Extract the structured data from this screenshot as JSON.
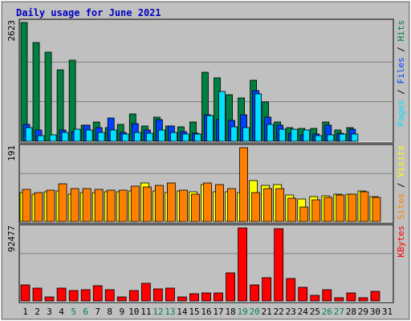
{
  "title": "Daily usage for June 2021",
  "colors": {
    "background": "#c0c0c0",
    "title": "#0000c0",
    "hits": "#008040",
    "files": "#0040ff",
    "pages": "#00e0ff",
    "visits": "#ffff00",
    "sites": "#ff8000",
    "kbytes": "#ff0000",
    "day_default": "#000000",
    "day_weekend": "#00805c"
  },
  "chart_data": [
    {
      "type": "bar",
      "name": "hits-files-pages",
      "ymax_label": "2623",
      "ymax": 2623,
      "right_label": [
        {
          "text": "Pages",
          "color": "#00e0ff"
        },
        {
          "text": " / ",
          "color": "#000000"
        },
        {
          "text": "Files",
          "color": "#0040ff"
        },
        {
          "text": " / ",
          "color": "#000000"
        },
        {
          "text": "Hits",
          "color": "#008040"
        }
      ],
      "categories": [
        1,
        2,
        3,
        4,
        5,
        6,
        7,
        8,
        9,
        10,
        11,
        12,
        13,
        14,
        15,
        16,
        17,
        18,
        19,
        20,
        21,
        22,
        23,
        24,
        25,
        26,
        27,
        28,
        29,
        30
      ],
      "series": [
        {
          "name": "Hits",
          "values": [
            2623,
            2180,
            1970,
            1570,
            1790,
            360,
            420,
            300,
            380,
            610,
            340,
            530,
            340,
            320,
            430,
            1520,
            1400,
            1030,
            950,
            1350,
            860,
            420,
            300,
            290,
            290,
            430,
            250,
            310,
            0,
            0
          ]
        },
        {
          "name": "Files",
          "values": [
            370,
            250,
            0,
            240,
            220,
            360,
            300,
            510,
            200,
            390,
            250,
            480,
            340,
            210,
            180,
            580,
            470,
            460,
            590,
            1110,
            540,
            360,
            180,
            150,
            160,
            350,
            180,
            260,
            0,
            0
          ]
        },
        {
          "name": "Pages",
          "values": [
            310,
            120,
            150,
            190,
            270,
            240,
            200,
            250,
            160,
            200,
            180,
            250,
            200,
            160,
            160,
            560,
            1100,
            320,
            300,
            1040,
            380,
            270,
            270,
            240,
            130,
            150,
            160,
            160,
            0,
            0
          ]
        }
      ]
    },
    {
      "type": "bar",
      "name": "visits-sites",
      "ymax_label": "191",
      "ymax": 191,
      "right_label": [
        {
          "text": "Sites",
          "color": "#ff8000"
        },
        {
          "text": " / ",
          "color": "#000000"
        },
        {
          "text": "Visits",
          "color": "#ffff00"
        }
      ],
      "categories": [
        1,
        2,
        3,
        4,
        5,
        6,
        7,
        8,
        9,
        10,
        11,
        12,
        13,
        14,
        15,
        16,
        17,
        18,
        19,
        20,
        21,
        22,
        23,
        24,
        25,
        26,
        27,
        28,
        29,
        30
      ],
      "series": [
        {
          "name": "Visits",
          "values": [
            74,
            70,
            76,
            79,
            70,
            74,
            74,
            77,
            76,
            79,
            100,
            79,
            74,
            79,
            76,
            96,
            76,
            76,
            75,
            105,
            94,
            95,
            68,
            58,
            64,
            66,
            70,
            70,
            79,
            65
          ]
        },
        {
          "name": "Sites",
          "values": [
            84,
            75,
            80,
            98,
            85,
            85,
            84,
            81,
            81,
            91,
            89,
            93,
            100,
            82,
            70,
            100,
            96,
            85,
            191,
            74,
            86,
            86,
            60,
            38,
            57,
            62,
            68,
            70,
            77,
            63
          ]
        }
      ]
    },
    {
      "type": "bar",
      "name": "kbytes",
      "ymax_label": "92477",
      "ymax": 92477,
      "right_label": [
        {
          "text": "KBytes",
          "color": "#ff0000"
        }
      ],
      "categories": [
        1,
        2,
        3,
        4,
        5,
        6,
        7,
        8,
        9,
        10,
        11,
        12,
        13,
        14,
        15,
        16,
        17,
        18,
        19,
        20,
        21,
        22,
        23,
        24,
        25,
        26,
        27,
        28,
        29,
        30
      ],
      "series": [
        {
          "name": "KBytes",
          "values": [
            20000,
            16000,
            5000,
            16000,
            13000,
            14000,
            19000,
            14000,
            5000,
            13000,
            22000,
            15000,
            16000,
            5000,
            9000,
            10000,
            10000,
            36000,
            92477,
            20000,
            29000,
            91000,
            28000,
            17000,
            7000,
            14000,
            4000,
            10000,
            4000,
            12000
          ]
        }
      ]
    }
  ],
  "x_axis": {
    "day_labels": [
      "1",
      "2",
      "3",
      "4",
      "5",
      "6",
      "7",
      "8",
      "9",
      "10",
      "11",
      "12",
      "13",
      "14",
      "15",
      "16",
      "17",
      "18",
      "19",
      "20",
      "21",
      "22",
      "23",
      "24",
      "25",
      "26",
      "27",
      "28",
      "29",
      "30",
      "31"
    ],
    "weekend_days": [
      5,
      6,
      12,
      13,
      19,
      20,
      26,
      27
    ]
  }
}
